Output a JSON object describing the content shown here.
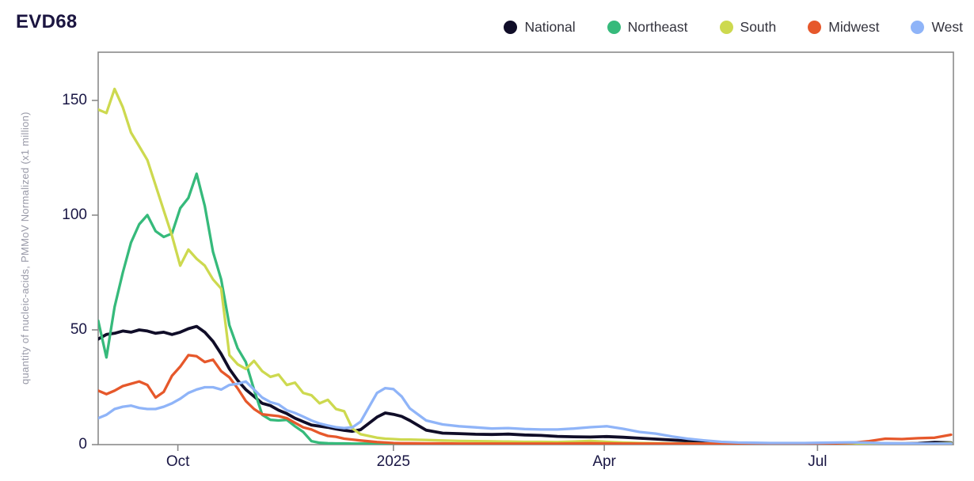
{
  "header": {
    "title": "EVD68"
  },
  "legend": {
    "items": [
      {
        "label": "National",
        "color": "#100d28"
      },
      {
        "label": "Northeast",
        "color": "#36ba7b"
      },
      {
        "label": "South",
        "color": "#cdd94f"
      },
      {
        "label": "Midwest",
        "color": "#e6582b"
      },
      {
        "label": "West",
        "color": "#8fb4f8"
      }
    ]
  },
  "chart_data": {
    "type": "line",
    "title": "EVD68",
    "xlabel": "",
    "ylabel": "quantity of nucleic-acids, PMMoV Normalized (x1 million)",
    "grid": false,
    "legend_position": "top-right",
    "axis_color": "#8a8a8a",
    "tick_label_color": "#191644",
    "ylim": [
      0,
      171
    ],
    "yticks": [
      {
        "label": "0",
        "value": 0
      },
      {
        "label": "50",
        "value": 50
      },
      {
        "label": "100",
        "value": 100
      },
      {
        "label": "150",
        "value": 150
      }
    ],
    "x_axis_note": "days across one year shown on screen; labeled ticks below",
    "xlim_days": [
      0,
      365
    ],
    "xticks": [
      {
        "label": "Oct",
        "day": 34
      },
      {
        "label": "2025",
        "day": 126
      },
      {
        "label": "Apr",
        "day": 216
      },
      {
        "label": "Jul",
        "day": 307
      }
    ],
    "x_days": [
      0,
      3.5,
      7,
      10.5,
      14,
      17.5,
      21,
      24.5,
      28,
      31.5,
      35,
      38.5,
      42,
      45.5,
      49,
      52.5,
      56,
      59.5,
      63,
      66.5,
      70,
      73.5,
      77,
      80.5,
      84,
      87.5,
      91,
      94.5,
      98,
      101.5,
      105,
      108.5,
      112,
      119,
      122.5,
      126,
      129.5,
      133,
      140,
      147,
      154,
      161,
      168,
      175,
      182,
      189,
      196,
      203,
      210,
      217,
      224,
      231,
      238,
      245,
      252,
      259,
      266,
      273,
      280,
      287,
      294,
      301,
      308,
      315,
      322,
      329,
      336,
      343,
      350,
      357,
      364
    ],
    "series": [
      {
        "name": "National",
        "color": "#100d28",
        "values": [
          46,
          48,
          48.5,
          49.5,
          49,
          50,
          49.5,
          48.5,
          49,
          48,
          49,
          50.5,
          51.5,
          49,
          45,
          39.5,
          33,
          28,
          24,
          21,
          18,
          17,
          15,
          13.5,
          11.5,
          10,
          8.5,
          8,
          7.5,
          6.8,
          6.2,
          5.8,
          6.5,
          12,
          13.8,
          13.2,
          12.3,
          10.5,
          6.3,
          5,
          4.8,
          4.5,
          4.4,
          4.6,
          4.2,
          4,
          3.6,
          3.4,
          3.3,
          3.5,
          3.2,
          2.8,
          2.4,
          2,
          1.6,
          1.2,
          0.9,
          0.7,
          0.5,
          0.4,
          0.4,
          0.3,
          0.3,
          0.3,
          0.3,
          0.3,
          0.4,
          0.4,
          0.5,
          1,
          0.8
        ]
      },
      {
        "name": "Northeast",
        "color": "#36ba7b",
        "values": [
          54,
          38,
          60,
          75,
          88,
          96,
          100,
          93,
          90.5,
          92,
          103,
          107.5,
          118,
          104,
          84,
          72,
          52,
          42,
          36,
          24,
          13,
          10.8,
          10.5,
          10.8,
          8,
          5.5,
          1.5,
          0.8,
          0.6,
          0.5,
          0.5,
          0.4,
          0.4,
          0.4,
          0.4,
          0.4,
          0.4,
          0.4,
          0.3,
          0.3,
          0.3,
          0.3,
          0.3,
          0.3,
          0.3,
          0.3,
          0.3,
          0.3,
          0.3,
          0.3,
          0.3,
          0.3,
          0.3,
          0.3,
          0.3,
          0.3,
          0.3,
          0.3,
          0.3,
          0.3,
          0.3,
          0.3,
          0.3,
          0.3,
          0.3,
          0.3,
          0.3,
          0.3,
          0.3,
          0.3,
          0.6
        ]
      },
      {
        "name": "South",
        "color": "#cdd94f",
        "values": [
          146,
          144.5,
          155,
          147,
          136,
          130,
          124,
          113,
          102,
          91,
          78,
          85,
          81,
          78,
          72,
          68,
          39,
          35,
          33,
          36.5,
          32,
          29.5,
          30.5,
          26,
          27,
          22.5,
          21.5,
          18,
          19.5,
          15.5,
          14.5,
          7,
          4.5,
          3,
          2.6,
          2.4,
          2.2,
          2.2,
          2,
          1.8,
          1.6,
          1.5,
          1.4,
          1.3,
          1.2,
          1.2,
          1.1,
          1.3,
          1.6,
          1.2,
          0.9,
          0.7,
          0.6,
          0.5,
          0.5,
          0.4,
          0.4,
          0.4,
          0.3,
          0.3,
          0.3,
          0.3,
          0.3,
          0.3,
          0.3,
          0.3,
          0.3,
          0.3,
          0.3,
          0.4,
          0.7
        ]
      },
      {
        "name": "Midwest",
        "color": "#e6582b",
        "values": [
          23.5,
          22,
          23.5,
          25.5,
          26.5,
          27.5,
          26,
          20.5,
          23,
          30,
          34,
          39,
          38.5,
          36,
          37,
          32,
          29.3,
          24.5,
          19,
          15.5,
          13.2,
          12.8,
          12.4,
          11.5,
          9.5,
          7.5,
          6.6,
          5,
          3.8,
          3.4,
          2.6,
          2.2,
          1.8,
          1.1,
          0.9,
          0.7,
          0.6,
          0.6,
          0.5,
          0.5,
          0.4,
          0.4,
          0.4,
          0.4,
          0.4,
          0.4,
          0.4,
          0.5,
          0.6,
          0.5,
          0.4,
          0.4,
          0.4,
          0.4,
          0.4,
          0.4,
          0.4,
          0.4,
          0.4,
          0.4,
          0.4,
          0.4,
          0.5,
          0.6,
          0.8,
          1.5,
          2.6,
          2.4,
          2.8,
          3,
          4.3
        ]
      },
      {
        "name": "West",
        "color": "#8fb4f8",
        "values": [
          11.5,
          13,
          15.5,
          16.5,
          17,
          16,
          15.5,
          15.5,
          16.5,
          18,
          20,
          22.5,
          24,
          25,
          25,
          24,
          26,
          26.5,
          27.5,
          24,
          20.5,
          18.5,
          17.5,
          15,
          13.8,
          12.2,
          10.5,
          9.2,
          8.3,
          7.6,
          7.2,
          7.5,
          10,
          22.5,
          24.6,
          24.2,
          21,
          15.8,
          10.5,
          8.8,
          8,
          7.5,
          7,
          7.2,
          6.8,
          6.6,
          6.6,
          7,
          7.6,
          8,
          6.9,
          5.5,
          4.8,
          3.5,
          2.5,
          1.8,
          1.2,
          0.9,
          0.8,
          0.7,
          0.7,
          0.7,
          0.8,
          0.9,
          1,
          0.8,
          0.6,
          0.5,
          0.4,
          0.4,
          0.4
        ]
      }
    ]
  }
}
